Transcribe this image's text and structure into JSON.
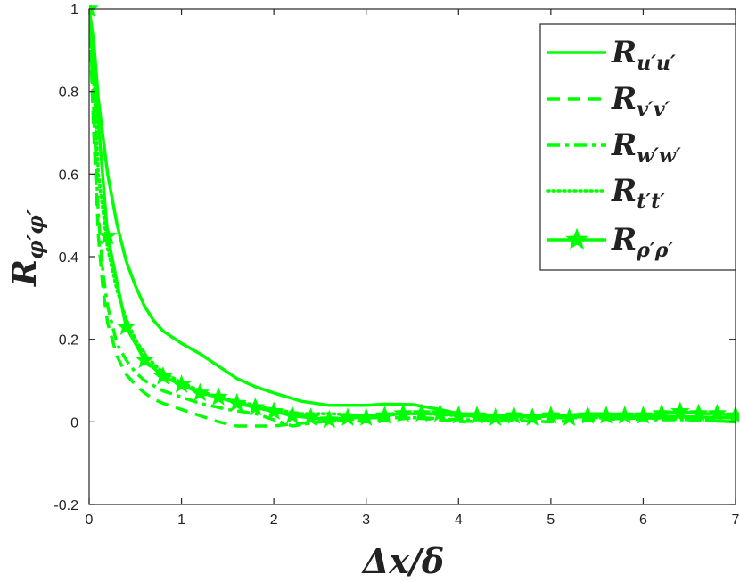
{
  "chart_data": {
    "type": "line",
    "title": "",
    "xlabel": {
      "main": "Δx/δ"
    },
    "ylabel": {
      "main": "R",
      "sub": "φ′φ′"
    },
    "xlim": [
      0,
      7
    ],
    "ylim": [
      -0.2,
      1
    ],
    "xticks": [
      0,
      1,
      2,
      3,
      4,
      5,
      6,
      7
    ],
    "yticks": [
      -0.2,
      0,
      0.2,
      0.4,
      0.6,
      0.8,
      1
    ],
    "xtick_labels": [
      "0",
      "1",
      "2",
      "3",
      "4",
      "5",
      "6",
      "7"
    ],
    "ytick_labels": [
      "-0.2",
      "0",
      "0.2",
      "0.4",
      "0.6",
      "0.8",
      "1"
    ],
    "grid": false,
    "legend_position": "top-right",
    "line_color": "#00ff00",
    "series": [
      {
        "name": "R_u′u′",
        "label_main": "R",
        "label_sub": "u′u′",
        "style": "solid",
        "x": [
          0,
          0.05,
          0.1,
          0.2,
          0.3,
          0.4,
          0.5,
          0.6,
          0.7,
          0.8,
          1.0,
          1.2,
          1.4,
          1.6,
          1.8,
          2.0,
          2.3,
          2.6,
          2.8,
          3.0,
          3.2,
          3.5,
          3.8,
          4.0,
          4.5,
          5.0,
          5.5,
          6.0,
          6.5,
          7.0
        ],
        "y": [
          1.0,
          0.92,
          0.78,
          0.6,
          0.48,
          0.39,
          0.33,
          0.28,
          0.245,
          0.22,
          0.19,
          0.165,
          0.135,
          0.105,
          0.085,
          0.07,
          0.05,
          0.04,
          0.04,
          0.04,
          0.043,
          0.042,
          0.03,
          0.02,
          0.015,
          0.015,
          0.02,
          0.015,
          0.012,
          0.01
        ]
      },
      {
        "name": "R_v′v′",
        "label_main": "R",
        "label_sub": "v′v′",
        "style": "dashed",
        "x": [
          0,
          0.05,
          0.1,
          0.15,
          0.2,
          0.3,
          0.4,
          0.5,
          0.6,
          0.7,
          0.8,
          1.0,
          1.2,
          1.4,
          1.6,
          1.8,
          2.0,
          2.2,
          2.5,
          2.8,
          3.0,
          3.3,
          3.5,
          3.8,
          4.0,
          4.5,
          5.0,
          5.5,
          6.0,
          6.5,
          7.0
        ],
        "y": [
          1.0,
          0.7,
          0.45,
          0.32,
          0.24,
          0.16,
          0.115,
          0.09,
          0.07,
          0.055,
          0.045,
          0.03,
          0.015,
          0.0,
          -0.01,
          -0.01,
          -0.01,
          -0.005,
          0.0,
          0.005,
          0.0,
          0.005,
          0.01,
          0.005,
          0.0,
          0.005,
          0.0,
          0.005,
          0.01,
          0.005,
          0.0
        ]
      },
      {
        "name": "R_w′w′",
        "label_main": "R",
        "label_sub": "w′w′",
        "style": "dashdot",
        "x": [
          0,
          0.05,
          0.1,
          0.15,
          0.2,
          0.3,
          0.4,
          0.5,
          0.6,
          0.8,
          1.0,
          1.2,
          1.5,
          1.8,
          2.0,
          2.2,
          2.5,
          2.8,
          3.0,
          3.3,
          3.6,
          4.0,
          4.5,
          5.0,
          5.5,
          6.0,
          6.5,
          7.0
        ],
        "y": [
          1.0,
          0.75,
          0.5,
          0.36,
          0.28,
          0.19,
          0.15,
          0.12,
          0.1,
          0.075,
          0.06,
          0.045,
          0.03,
          0.02,
          0.005,
          -0.01,
          0.0,
          0.005,
          0.01,
          0.01,
          0.01,
          0.005,
          0.005,
          0.01,
          0.01,
          0.005,
          0.005,
          0.0
        ]
      },
      {
        "name": "R_t′t′",
        "label_main": "R",
        "label_sub": "t′t′",
        "style": "dotted",
        "x": [
          0,
          0.05,
          0.1,
          0.2,
          0.3,
          0.4,
          0.5,
          0.6,
          0.7,
          0.8,
          1.0,
          1.2,
          1.4,
          1.6,
          1.8,
          2.0,
          2.3,
          2.6,
          3.0,
          3.3,
          3.6,
          4.0,
          4.5,
          5.0,
          5.5,
          6.0,
          6.5,
          7.0
        ],
        "y": [
          1.0,
          0.82,
          0.6,
          0.42,
          0.32,
          0.25,
          0.2,
          0.165,
          0.14,
          0.12,
          0.095,
          0.075,
          0.06,
          0.05,
          0.04,
          0.03,
          0.02,
          0.02,
          0.015,
          0.02,
          0.02,
          0.015,
          0.01,
          0.015,
          0.01,
          0.01,
          0.01,
          0.01
        ]
      },
      {
        "name": "R_ρ′ρ′",
        "label_main": "R",
        "label_sub": "ρ′ρ′",
        "style": "solid-star",
        "x": [
          0,
          0.2,
          0.4,
          0.6,
          0.8,
          1.0,
          1.2,
          1.4,
          1.6,
          1.8,
          2.0,
          2.2,
          2.4,
          2.6,
          2.8,
          3.0,
          3.2,
          3.4,
          3.6,
          3.8,
          4.0,
          4.2,
          4.4,
          4.6,
          4.8,
          5.0,
          5.2,
          5.4,
          5.6,
          5.8,
          6.0,
          6.2,
          6.4,
          6.6,
          6.8,
          7.0
        ],
        "y": [
          1.0,
          0.45,
          0.23,
          0.15,
          0.11,
          0.09,
          0.07,
          0.06,
          0.045,
          0.035,
          0.025,
          0.015,
          0.01,
          0.005,
          0.01,
          0.01,
          0.015,
          0.02,
          0.02,
          0.02,
          0.015,
          0.015,
          0.01,
          0.015,
          0.01,
          0.015,
          0.01,
          0.015,
          0.015,
          0.015,
          0.015,
          0.02,
          0.025,
          0.02,
          0.02,
          0.015
        ]
      }
    ]
  }
}
